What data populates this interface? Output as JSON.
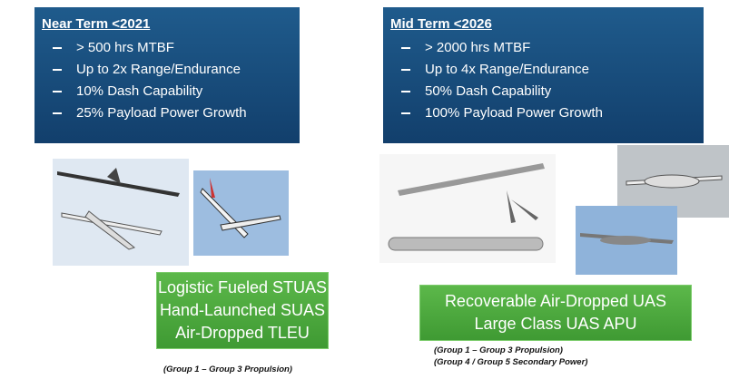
{
  "panels": [
    {
      "title": "Near Term <2021",
      "bullets": [
        "> 500 hrs MTBF",
        "Up to 2x Range/Endurance",
        "10% Dash Capability",
        "25% Payload Power Growth"
      ],
      "capabilities": [
        "Logistic Fueled STUAS",
        "Hand-Launched SUAS",
        "Air-Dropped TLEU"
      ],
      "note": [
        "(Group 1 – Group 3 Propulsion)"
      ]
    },
    {
      "title": "Mid Term <2026",
      "bullets": [
        "> 2000 hrs MTBF",
        "Up to 4x Range/Endurance",
        "50% Dash Capability",
        "100% Payload Power Growth"
      ],
      "capabilities": [
        "Recoverable Air-Dropped UAS",
        "Large Class UAS APU"
      ],
      "note": [
        "(Group 1 – Group 3 Propulsion)",
        "(Group 4 / Group 5 Secondary Power)"
      ]
    }
  ]
}
